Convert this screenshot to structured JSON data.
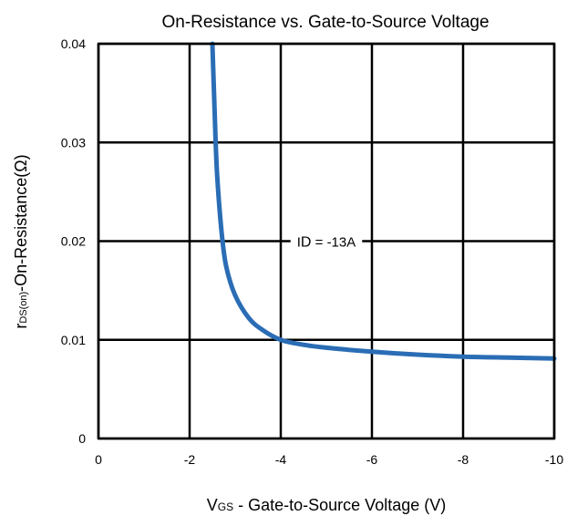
{
  "chart_data": {
    "type": "line",
    "title": "On-Resistance vs. Gate-to-Source Voltage",
    "xlabel": {
      "main": "V",
      "sub": "GS",
      "rest": " - Gate-to-Source Voltage (V)"
    },
    "ylabel": {
      "main": "r",
      "sub": "DS(on)",
      "rest": "-On-Resistance(Ω)"
    },
    "xlim": [
      0,
      -10
    ],
    "ylim": [
      0,
      0.04
    ],
    "x_ticks": [
      0,
      -2,
      -4,
      -6,
      -8,
      -10
    ],
    "x_tick_labels": [
      "0",
      "-2",
      "-4",
      "-6",
      "-8",
      "-10"
    ],
    "y_ticks": [
      0,
      0.01,
      0.02,
      0.03,
      0.04
    ],
    "y_tick_labels": [
      "0",
      "0.01",
      "0.02",
      "0.03",
      "0.04"
    ],
    "grid": true,
    "series": [
      {
        "color": "#2a6db5",
        "x": [
          -2.5,
          -2.55,
          -2.6,
          -2.7,
          -2.8,
          -3.0,
          -3.3,
          -3.6,
          -4.0,
          -4.5,
          -5.0,
          -6.0,
          -7.0,
          -8.0,
          -9.0,
          -10.0
        ],
        "y": [
          0.04,
          0.033,
          0.027,
          0.021,
          0.0175,
          0.0145,
          0.0122,
          0.011,
          0.01,
          0.0095,
          0.0092,
          0.0088,
          0.0085,
          0.0083,
          0.0082,
          0.0081
        ]
      }
    ],
    "annotations": [
      {
        "main": "I",
        "sub": "D",
        "rest": " = -13A",
        "x": -5,
        "y": 0.02
      }
    ]
  }
}
